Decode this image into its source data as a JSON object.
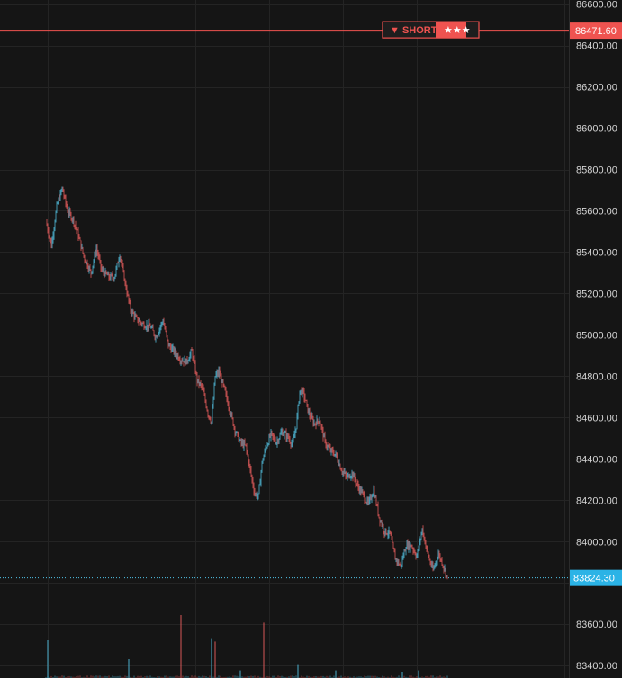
{
  "colors": {
    "background": "#151515",
    "grid": "#242424",
    "axis_text": "#d6d6d6",
    "up": "#4fb8d6",
    "down": "#e05a5a",
    "short_line": "#ef5350",
    "current_line": "#4fc3e8"
  },
  "short_signal": {
    "label": "▼ SHORT",
    "rating": "★★★",
    "price_label": "86471.60"
  },
  "current_price": {
    "price_label": "83824.30"
  },
  "chart_data": {
    "type": "candlestick",
    "y_axis": {
      "ticks": [
        83400,
        83600,
        83800,
        84000,
        84200,
        84400,
        84600,
        84800,
        85000,
        85200,
        85400,
        85600,
        85800,
        86000,
        86200,
        86400,
        86600
      ],
      "tick_labels": [
        "83400.00",
        "83600.00",
        "84000.00",
        "84200.00",
        "84400.00",
        "84600.00",
        "84800.00",
        "85000.00",
        "85200.00",
        "85400.00",
        "85600.00",
        "85800.00",
        "86000.00",
        "86200.00",
        "86400.00",
        "86600.00"
      ],
      "range": [
        83340,
        86620
      ]
    },
    "grid": true,
    "horizontal_lines": [
      {
        "name": "short",
        "price": 86471.6
      },
      {
        "name": "current",
        "price": 83824.3
      }
    ],
    "price_path_anchors": [
      [
        0,
        85550
      ],
      [
        6,
        85430
      ],
      [
        12,
        85620
      ],
      [
        18,
        85710
      ],
      [
        24,
        85600
      ],
      [
        30,
        85560
      ],
      [
        36,
        85480
      ],
      [
        42,
        85380
      ],
      [
        50,
        85300
      ],
      [
        56,
        85420
      ],
      [
        62,
        85310
      ],
      [
        70,
        85280
      ],
      [
        76,
        85280
      ],
      [
        82,
        85390
      ],
      [
        88,
        85250
      ],
      [
        94,
        85120
      ],
      [
        100,
        85080
      ],
      [
        108,
        85050
      ],
      [
        116,
        85040
      ],
      [
        122,
        84990
      ],
      [
        130,
        85070
      ],
      [
        136,
        84950
      ],
      [
        142,
        84920
      ],
      [
        150,
        84880
      ],
      [
        156,
        84870
      ],
      [
        162,
        84920
      ],
      [
        168,
        84780
      ],
      [
        174,
        84740
      ],
      [
        180,
        84620
      ],
      [
        184,
        84580
      ],
      [
        188,
        84800
      ],
      [
        192,
        84820
      ],
      [
        198,
        84740
      ],
      [
        204,
        84640
      ],
      [
        210,
        84540
      ],
      [
        216,
        84480
      ],
      [
        222,
        84460
      ],
      [
        228,
        84320
      ],
      [
        232,
        84230
      ],
      [
        236,
        84220
      ],
      [
        240,
        84380
      ],
      [
        244,
        84450
      ],
      [
        250,
        84520
      ],
      [
        256,
        84480
      ],
      [
        262,
        84530
      ],
      [
        268,
        84510
      ],
      [
        274,
        84470
      ],
      [
        278,
        84560
      ],
      [
        282,
        84730
      ],
      [
        286,
        84720
      ],
      [
        292,
        84620
      ],
      [
        298,
        84570
      ],
      [
        304,
        84590
      ],
      [
        310,
        84480
      ],
      [
        316,
        84440
      ],
      [
        322,
        84420
      ],
      [
        328,
        84350
      ],
      [
        334,
        84310
      ],
      [
        340,
        84330
      ],
      [
        346,
        84270
      ],
      [
        352,
        84230
      ],
      [
        358,
        84180
      ],
      [
        364,
        84250
      ],
      [
        370,
        84120
      ],
      [
        376,
        84050
      ],
      [
        382,
        84040
      ],
      [
        388,
        83920
      ],
      [
        394,
        83880
      ],
      [
        400,
        83980
      ],
      [
        406,
        83980
      ],
      [
        412,
        83930
      ],
      [
        418,
        84060
      ],
      [
        422,
        83980
      ],
      [
        426,
        83910
      ],
      [
        430,
        83860
      ],
      [
        436,
        83940
      ],
      [
        440,
        83900
      ],
      [
        446,
        83824
      ]
    ],
    "volume_spikes": [
      {
        "i": 2,
        "v": 0.6,
        "up": true
      },
      {
        "i": 92,
        "v": 0.3,
        "up": true
      },
      {
        "i": 150,
        "v": 1.0,
        "up": false
      },
      {
        "i": 184,
        "v": 0.62,
        "up": true
      },
      {
        "i": 188,
        "v": 0.58,
        "up": false
      },
      {
        "i": 216,
        "v": 0.12,
        "up": true
      },
      {
        "i": 242,
        "v": 0.88,
        "up": false
      },
      {
        "i": 280,
        "v": 0.22,
        "up": true
      },
      {
        "i": 322,
        "v": 0.12,
        "up": true
      },
      {
        "i": 396,
        "v": 0.1,
        "up": true
      },
      {
        "i": 414,
        "v": 0.12,
        "up": true
      }
    ]
  }
}
